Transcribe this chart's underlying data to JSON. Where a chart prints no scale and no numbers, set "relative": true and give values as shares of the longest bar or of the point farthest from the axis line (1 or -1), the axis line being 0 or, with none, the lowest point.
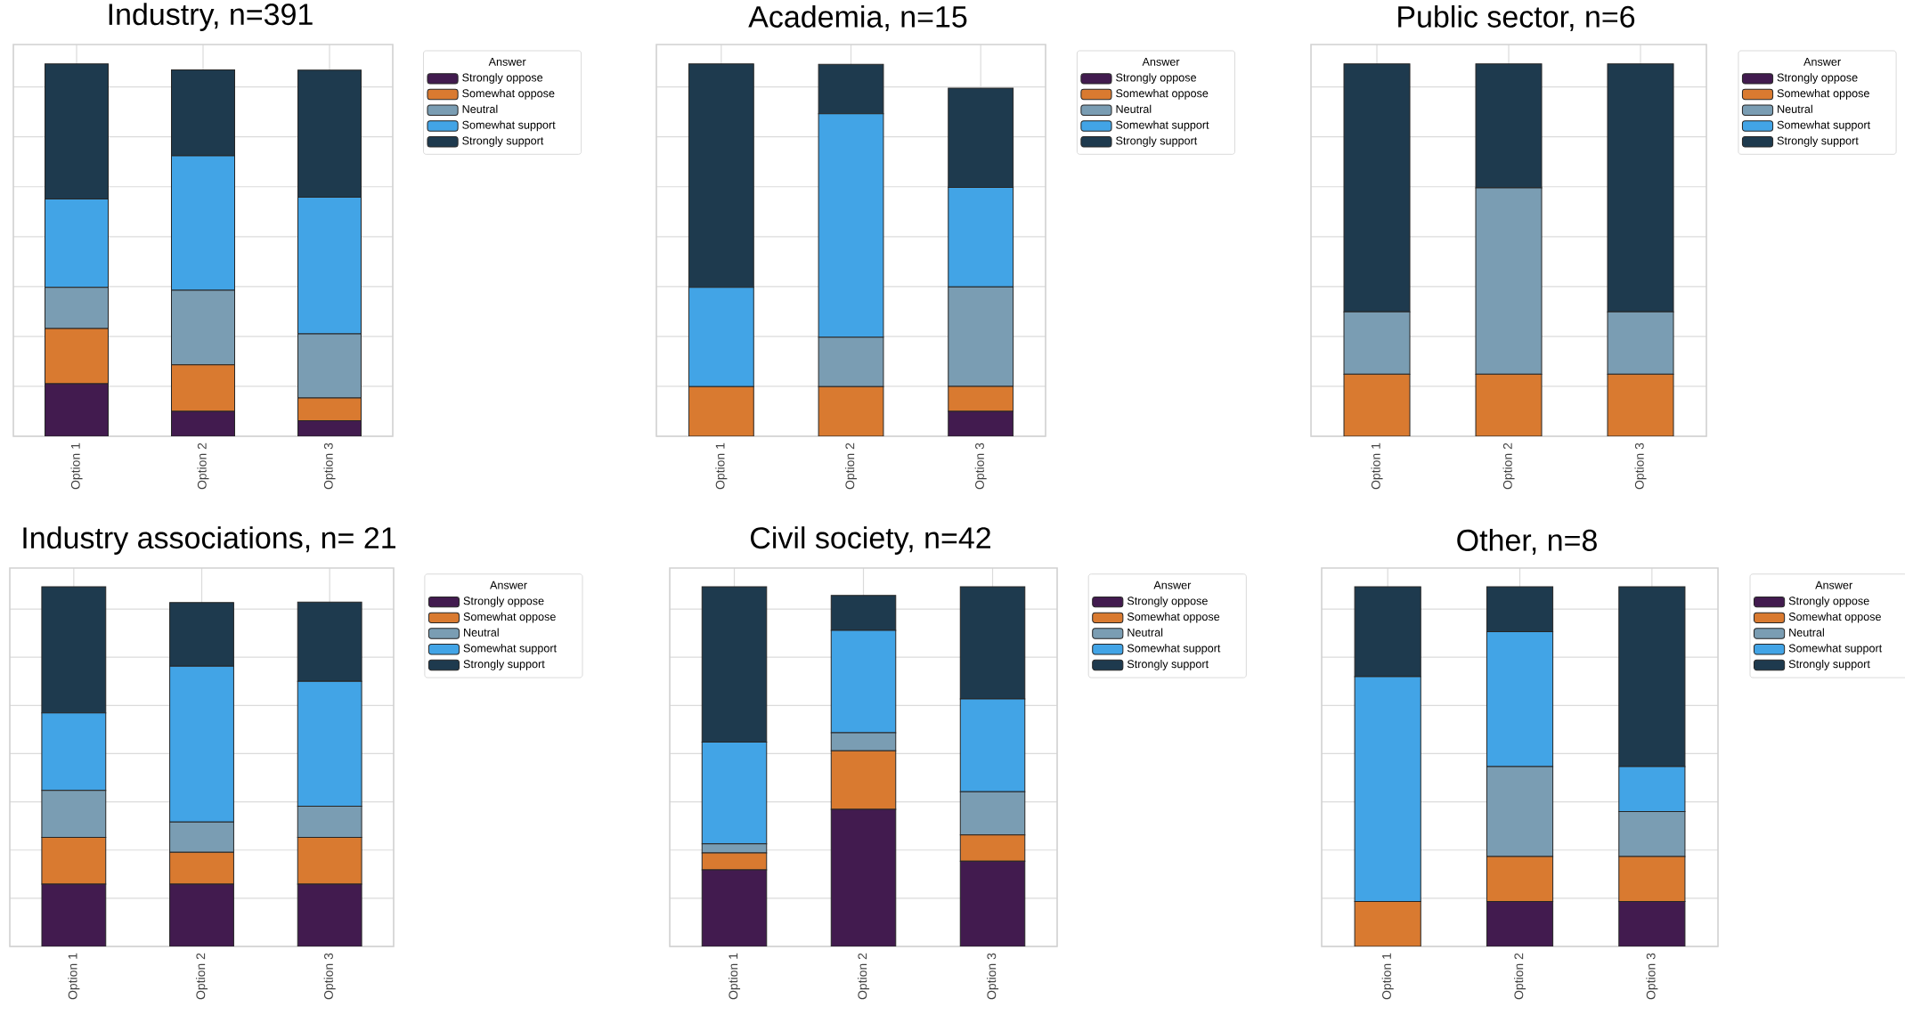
{
  "chart_data": [
    {
      "type": "bar",
      "stacked": true,
      "relative": true,
      "title": "Industry, n=391",
      "categories": [
        "Option 1",
        "Option 2",
        "Option 3"
      ],
      "legend_title": "Answer",
      "legend": "top right",
      "grid": true,
      "series": [
        {
          "name": "Strongly oppose",
          "color": "#421b4f",
          "values": [
            0.141,
            0.067,
            0.042
          ]
        },
        {
          "name": "Somewhat oppose",
          "color": "#d97a30",
          "values": [
            0.148,
            0.125,
            0.061
          ]
        },
        {
          "name": "Neutral",
          "color": "#7a9db3",
          "values": [
            0.111,
            0.2,
            0.172
          ]
        },
        {
          "name": "Somewhat support",
          "color": "#42a4e6",
          "values": [
            0.237,
            0.361,
            0.367
          ]
        },
        {
          "name": "Strongly support",
          "color": "#1e3a4e",
          "values": [
            0.363,
            0.231,
            0.341
          ]
        }
      ]
    },
    {
      "type": "bar",
      "stacked": true,
      "relative": true,
      "title": "Academia, n=15",
      "categories": [
        "Option 1",
        "Option 2",
        "Option 3"
      ],
      "legend_title": "Answer",
      "legend": "top right",
      "grid": true,
      "series": [
        {
          "name": "Strongly oppose",
          "color": "#421b4f",
          "values": [
            0,
            0,
            0.067
          ]
        },
        {
          "name": "Somewhat oppose",
          "color": "#d97a30",
          "values": [
            0.133,
            0.133,
            0.067
          ]
        },
        {
          "name": "Neutral",
          "color": "#7a9db3",
          "values": [
            0,
            0.133,
            0.267
          ]
        },
        {
          "name": "Somewhat support",
          "color": "#42a4e6",
          "values": [
            0.267,
            0.6,
            0.267
          ]
        },
        {
          "name": "Strongly support",
          "color": "#1e3a4e",
          "values": [
            0.6,
            0.133,
            0.267
          ]
        }
      ]
    },
    {
      "type": "bar",
      "stacked": true,
      "relative": true,
      "title": "Public sector, n=6",
      "categories": [
        "Option 1",
        "Option 2",
        "Option 3"
      ],
      "legend_title": "Answer",
      "legend": "top right",
      "grid": true,
      "series": [
        {
          "name": "Strongly oppose",
          "color": "#421b4f",
          "values": [
            0,
            0,
            0
          ]
        },
        {
          "name": "Somewhat oppose",
          "color": "#d97a30",
          "values": [
            0.167,
            0.167,
            0.167
          ]
        },
        {
          "name": "Neutral",
          "color": "#7a9db3",
          "values": [
            0.167,
            0.5,
            0.167
          ]
        },
        {
          "name": "Somewhat support",
          "color": "#42a4e6",
          "values": [
            0,
            0,
            0
          ]
        },
        {
          "name": "Strongly support",
          "color": "#1e3a4e",
          "values": [
            0.666,
            0.333,
            0.666
          ]
        }
      ]
    },
    {
      "type": "bar",
      "stacked": true,
      "relative": true,
      "title": "Industry associations, n= 21",
      "categories": [
        "Option 1",
        "Option 2",
        "Option 3"
      ],
      "legend_title": "Answer",
      "legend": "top right",
      "grid": true,
      "series": [
        {
          "name": "Strongly oppose",
          "color": "#421b4f",
          "values": [
            0.173,
            0.173,
            0.173
          ]
        },
        {
          "name": "Somewhat oppose",
          "color": "#d97a30",
          "values": [
            0.13,
            0.089,
            0.13
          ]
        },
        {
          "name": "Neutral",
          "color": "#7a9db3",
          "values": [
            0.131,
            0.084,
            0.087
          ]
        },
        {
          "name": "Somewhat support",
          "color": "#42a4e6",
          "values": [
            0.215,
            0.433,
            0.347
          ]
        },
        {
          "name": "Strongly support",
          "color": "#1e3a4e",
          "values": [
            0.351,
            0.177,
            0.22
          ]
        }
      ]
    },
    {
      "type": "bar",
      "stacked": true,
      "relative": true,
      "title": "Civil society, n=42",
      "categories": [
        "Option 1",
        "Option 2",
        "Option 3"
      ],
      "legend_title": "Answer",
      "legend": "top right",
      "grid": true,
      "series": [
        {
          "name": "Strongly oppose",
          "color": "#421b4f",
          "values": [
            0.213,
            0.381,
            0.237
          ]
        },
        {
          "name": "Somewhat oppose",
          "color": "#d97a30",
          "values": [
            0.047,
            0.163,
            0.073
          ]
        },
        {
          "name": "Neutral",
          "color": "#7a9db3",
          "values": [
            0.025,
            0.05,
            0.12
          ]
        },
        {
          "name": "Somewhat support",
          "color": "#42a4e6",
          "values": [
            0.283,
            0.285,
            0.258
          ]
        },
        {
          "name": "Strongly support",
          "color": "#1e3a4e",
          "values": [
            0.432,
            0.097,
            0.312
          ]
        }
      ]
    },
    {
      "type": "bar",
      "stacked": true,
      "relative": true,
      "title": "Other, n=8",
      "categories": [
        "Option 1",
        "Option 2",
        "Option 3"
      ],
      "legend_title": "Answer",
      "legend": "top right",
      "grid": true,
      "series": [
        {
          "name": "Strongly oppose",
          "color": "#421b4f",
          "values": [
            0,
            0.125,
            0.125
          ]
        },
        {
          "name": "Somewhat oppose",
          "color": "#d97a30",
          "values": [
            0.125,
            0.125,
            0.125
          ]
        },
        {
          "name": "Neutral",
          "color": "#7a9db3",
          "values": [
            0,
            0.25,
            0.125
          ]
        },
        {
          "name": "Somewhat support",
          "color": "#42a4e6",
          "values": [
            0.625,
            0.375,
            0.125
          ]
        },
        {
          "name": "Strongly support",
          "color": "#1e3a4e",
          "values": [
            0.25,
            0.125,
            0.5
          ]
        }
      ]
    }
  ]
}
